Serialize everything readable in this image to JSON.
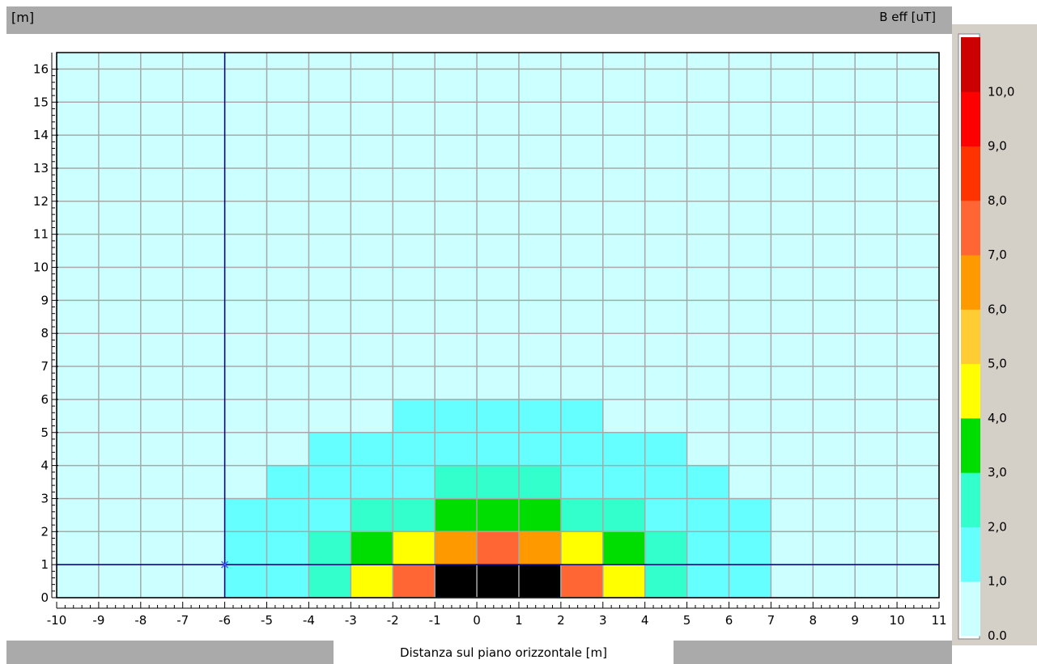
{
  "header": {
    "y_unit": "[m]",
    "legend_unit": "B eff [uT]"
  },
  "chart_data": {
    "type": "heatmap",
    "xlabel": "Distanza sul piano orizzontale [m]",
    "ylabel": "[m]",
    "xlim": [
      -10,
      11
    ],
    "ylim": [
      0,
      16.5
    ],
    "x_ticks": [
      -10,
      -9,
      -8,
      -7,
      -6,
      -5,
      -4,
      -3,
      -2,
      -1,
      0,
      1,
      2,
      3,
      4,
      5,
      6,
      7,
      8,
      9,
      10,
      11
    ],
    "y_ticks": [
      0,
      1,
      2,
      3,
      4,
      5,
      6,
      7,
      8,
      9,
      10,
      11,
      12,
      13,
      14,
      15,
      16
    ],
    "grid": true,
    "colorbar": {
      "title": "B eff [uT]",
      "labels": [
        "0.0",
        "1,0",
        "2,0",
        "3,0",
        "4,0",
        "5,0",
        "6,0",
        "7,0",
        "8,0",
        "9,0",
        "10,0"
      ],
      "band_colors": [
        "#ccffff",
        "#66ffff",
        "#33ffcc",
        "#00dd00",
        "#ffff00",
        "#ffcc33",
        "#ff9900",
        "#ff6633",
        "#ff3300",
        "#ff0000",
        "#cc0000"
      ]
    },
    "cells": [
      {
        "x0": -6,
        "y0": 0,
        "band": 1
      },
      {
        "x0": -5,
        "y0": 0,
        "band": 1
      },
      {
        "x0": -4,
        "y0": 0,
        "band": 2
      },
      {
        "x0": -3,
        "y0": 0,
        "band": 4
      },
      {
        "x0": -2,
        "y0": 0,
        "band": 7
      },
      {
        "x0": -1,
        "y0": 0,
        "color": "#000000"
      },
      {
        "x0": 0,
        "y0": 0,
        "color": "#000000"
      },
      {
        "x0": 1,
        "y0": 0,
        "color": "#000000"
      },
      {
        "x0": 2,
        "y0": 0,
        "band": 7
      },
      {
        "x0": 3,
        "y0": 0,
        "band": 4
      },
      {
        "x0": 4,
        "y0": 0,
        "band": 2
      },
      {
        "x0": 5,
        "y0": 0,
        "band": 1
      },
      {
        "x0": 6,
        "y0": 0,
        "band": 1
      },
      {
        "x0": -6,
        "y0": 1,
        "band": 1
      },
      {
        "x0": -5,
        "y0": 1,
        "band": 1
      },
      {
        "x0": -4,
        "y0": 1,
        "band": 2
      },
      {
        "x0": -3,
        "y0": 1,
        "band": 3
      },
      {
        "x0": -2,
        "y0": 1,
        "band": 4
      },
      {
        "x0": -1,
        "y0": 1,
        "band": 6
      },
      {
        "x0": 0,
        "y0": 1,
        "band": 7
      },
      {
        "x0": 1,
        "y0": 1,
        "band": 6
      },
      {
        "x0": 2,
        "y0": 1,
        "band": 4
      },
      {
        "x0": 3,
        "y0": 1,
        "band": 3
      },
      {
        "x0": 4,
        "y0": 1,
        "band": 2
      },
      {
        "x0": 5,
        "y0": 1,
        "band": 1
      },
      {
        "x0": 6,
        "y0": 1,
        "band": 1
      },
      {
        "x0": -6,
        "y0": 2,
        "band": 1
      },
      {
        "x0": -5,
        "y0": 2,
        "band": 1
      },
      {
        "x0": -4,
        "y0": 2,
        "band": 1
      },
      {
        "x0": -3,
        "y0": 2,
        "band": 2
      },
      {
        "x0": -2,
        "y0": 2,
        "band": 2
      },
      {
        "x0": -1,
        "y0": 2,
        "band": 3
      },
      {
        "x0": 0,
        "y0": 2,
        "band": 3
      },
      {
        "x0": 1,
        "y0": 2,
        "band": 3
      },
      {
        "x0": 2,
        "y0": 2,
        "band": 2
      },
      {
        "x0": 3,
        "y0": 2,
        "band": 2
      },
      {
        "x0": 4,
        "y0": 2,
        "band": 1
      },
      {
        "x0": 5,
        "y0": 2,
        "band": 1
      },
      {
        "x0": 6,
        "y0": 2,
        "band": 1
      },
      {
        "x0": -5,
        "y0": 3,
        "band": 1
      },
      {
        "x0": -4,
        "y0": 3,
        "band": 1
      },
      {
        "x0": -3,
        "y0": 3,
        "band": 1
      },
      {
        "x0": -2,
        "y0": 3,
        "band": 1
      },
      {
        "x0": -1,
        "y0": 3,
        "band": 2
      },
      {
        "x0": 0,
        "y0": 3,
        "band": 2
      },
      {
        "x0": 1,
        "y0": 3,
        "band": 2
      },
      {
        "x0": 2,
        "y0": 3,
        "band": 1
      },
      {
        "x0": 3,
        "y0": 3,
        "band": 1
      },
      {
        "x0": 4,
        "y0": 3,
        "band": 1
      },
      {
        "x0": 5,
        "y0": 3,
        "band": 1
      },
      {
        "x0": -4,
        "y0": 4,
        "band": 1
      },
      {
        "x0": -3,
        "y0": 4,
        "band": 1
      },
      {
        "x0": -2,
        "y0": 4,
        "band": 1
      },
      {
        "x0": -1,
        "y0": 4,
        "band": 1
      },
      {
        "x0": 0,
        "y0": 4,
        "band": 1
      },
      {
        "x0": 1,
        "y0": 4,
        "band": 1
      },
      {
        "x0": 2,
        "y0": 4,
        "band": 1
      },
      {
        "x0": 3,
        "y0": 4,
        "band": 1
      },
      {
        "x0": 4,
        "y0": 4,
        "band": 1
      },
      {
        "x0": -2,
        "y0": 5,
        "band": 1
      },
      {
        "x0": -1,
        "y0": 5,
        "band": 1
      },
      {
        "x0": 0,
        "y0": 5,
        "band": 1
      },
      {
        "x0": 1,
        "y0": 5,
        "band": 1
      },
      {
        "x0": 2,
        "y0": 5,
        "band": 1
      }
    ],
    "crosshair": {
      "x": -6,
      "y": 1
    }
  }
}
